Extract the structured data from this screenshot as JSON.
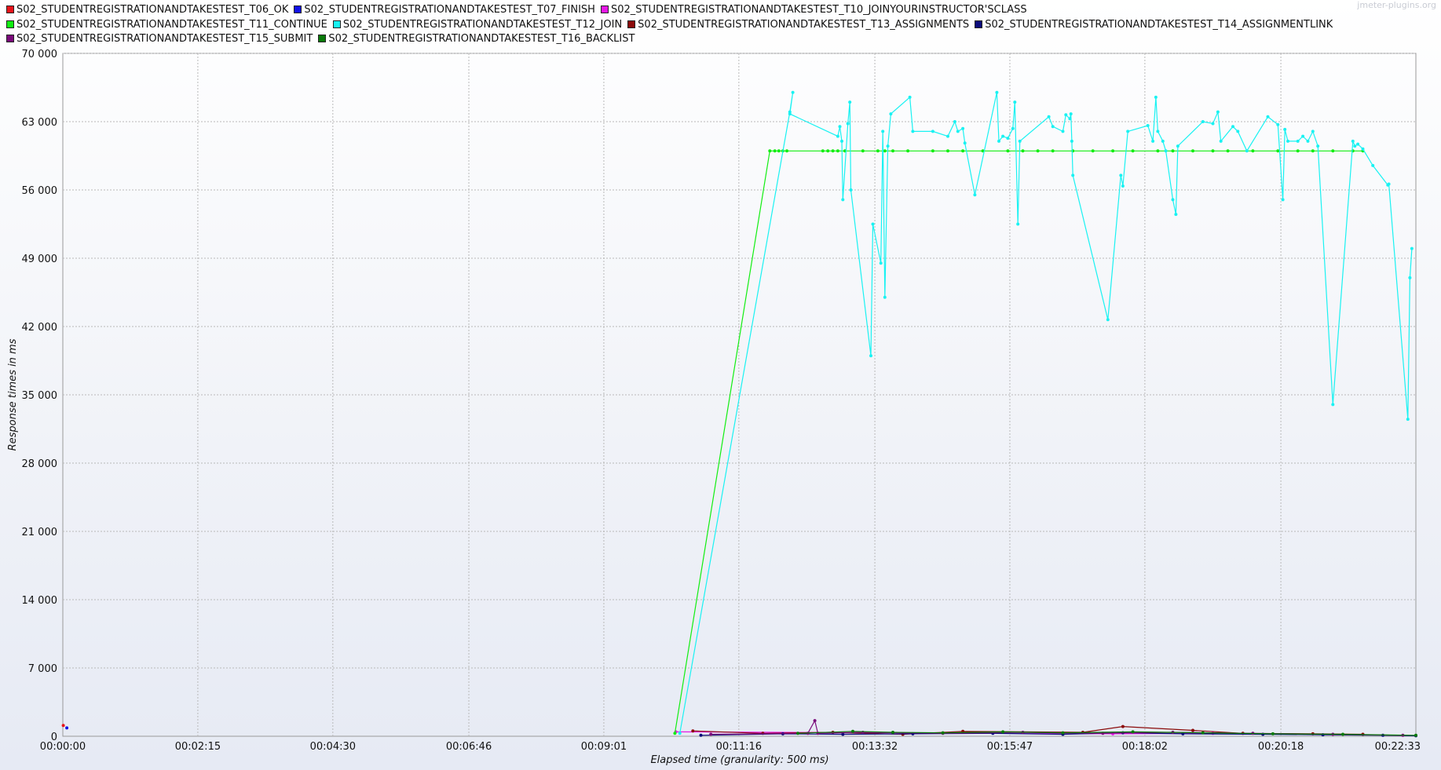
{
  "watermark": "jmeter-plugins.org",
  "chart_data": {
    "type": "line",
    "xlabel": "Elapsed time (granularity: 500 ms)",
    "ylabel": "Response times in ms",
    "x_unit": "seconds elapsed",
    "xlim": [
      0,
      1353
    ],
    "ylim": [
      0,
      70000
    ],
    "y_ticks": [
      0,
      7000,
      14000,
      21000,
      28000,
      35000,
      42000,
      49000,
      56000,
      63000,
      70000
    ],
    "y_tick_labels": [
      "0",
      "7 000",
      "14 000",
      "21 000",
      "28 000",
      "35 000",
      "42 000",
      "49 000",
      "56 000",
      "63 000",
      "70 000"
    ],
    "x_ticks": [
      0,
      135,
      270,
      406,
      541,
      676,
      812,
      947,
      1082,
      1218,
      1353
    ],
    "x_tick_labels": [
      "00:00:00",
      "00:02:15",
      "00:04:30",
      "00:06:46",
      "00:09:01",
      "00:11:16",
      "00:13:32",
      "00:15:47",
      "00:18:02",
      "00:20:18",
      "00:22:33"
    ],
    "grid": true,
    "legend_position": "top",
    "series": [
      {
        "name": "S02_STUDENTREGISTRATIONANDTAKESTEST_T06_OK",
        "color": "#e8141a",
        "points": [
          [
            0.5,
            1100
          ]
        ]
      },
      {
        "name": "S02_STUDENTREGISTRATIONANDTAKESTEST_T07_FINISH",
        "color": "#1212e6",
        "points": [
          [
            4,
            850
          ]
        ]
      },
      {
        "name": "S02_STUDENTREGISTRATIONANDTAKESTEST_T10_JOINYOURINSTRUCTOR'SCLASS",
        "color": "#e619e6",
        "points": [
          [
            613,
            450
          ],
          [
            1050,
            250
          ],
          [
            1150,
            300
          ]
        ]
      },
      {
        "name": "S02_STUDENTREGISTRATIONANDTAKESTEST_T11_CONTINUE",
        "color": "#11ee11",
        "points": [
          [
            612,
            300
          ],
          [
            707,
            60000
          ],
          [
            712,
            60000
          ],
          [
            716,
            60000
          ],
          [
            720,
            60000
          ],
          [
            724,
            60000
          ],
          [
            760,
            60000
          ],
          [
            765,
            60000
          ],
          [
            770,
            60000
          ],
          [
            775,
            60000
          ],
          [
            782,
            60000
          ],
          [
            800,
            60000
          ],
          [
            815,
            60000
          ],
          [
            822,
            60000
          ],
          [
            830,
            60000
          ],
          [
            845,
            60000
          ],
          [
            870,
            60000
          ],
          [
            885,
            60000
          ],
          [
            900,
            60000
          ],
          [
            920,
            60000
          ],
          [
            945,
            60000
          ],
          [
            960,
            60000
          ],
          [
            975,
            60000
          ],
          [
            990,
            60000
          ],
          [
            1010,
            60000
          ],
          [
            1030,
            60000
          ],
          [
            1050,
            60000
          ],
          [
            1070,
            60000
          ],
          [
            1095,
            60000
          ],
          [
            1110,
            60000
          ],
          [
            1130,
            60000
          ],
          [
            1150,
            60000
          ],
          [
            1165,
            60000
          ],
          [
            1190,
            60000
          ],
          [
            1215,
            60000
          ],
          [
            1235,
            60000
          ],
          [
            1250,
            60000
          ],
          [
            1270,
            60000
          ],
          [
            1290,
            60000
          ],
          [
            1300,
            60000
          ]
        ]
      },
      {
        "name": "S02_STUDENTREGISTRATIONANDTAKESTEST_T12_JOIN",
        "color": "#19f2f2",
        "points": [
          [
            617,
            300
          ],
          [
            727,
            64000
          ],
          [
            730,
            66000
          ],
          [
            727,
            63800
          ],
          [
            775,
            61500
          ],
          [
            777,
            62500
          ],
          [
            779,
            61000
          ],
          [
            780,
            55000
          ],
          [
            785,
            62800
          ],
          [
            787,
            65000
          ],
          [
            788,
            56000
          ],
          [
            808,
            39000
          ],
          [
            810,
            52500
          ],
          [
            818,
            48500
          ],
          [
            820,
            62000
          ],
          [
            822,
            45000
          ],
          [
            825,
            60500
          ],
          [
            828,
            63800
          ],
          [
            847,
            65500
          ],
          [
            850,
            62000
          ],
          [
            870,
            62000
          ],
          [
            885,
            61500
          ],
          [
            892,
            63000
          ],
          [
            895,
            62000
          ],
          [
            900,
            62300
          ],
          [
            902,
            60800
          ],
          [
            912,
            55500
          ],
          [
            934,
            66000
          ],
          [
            936,
            61000
          ],
          [
            940,
            61500
          ],
          [
            945,
            61300
          ],
          [
            950,
            62300
          ],
          [
            952,
            65000
          ],
          [
            955,
            52500
          ],
          [
            957,
            61000
          ],
          [
            986,
            63500
          ],
          [
            990,
            62500
          ],
          [
            1000,
            62000
          ],
          [
            1003,
            63700
          ],
          [
            1007,
            63300
          ],
          [
            1008,
            63800
          ],
          [
            1009,
            61000
          ],
          [
            1010,
            57500
          ],
          [
            1045,
            42700
          ],
          [
            1058,
            57500
          ],
          [
            1060,
            56400
          ],
          [
            1065,
            62000
          ],
          [
            1085,
            62600
          ],
          [
            1090,
            61000
          ],
          [
            1093,
            65500
          ],
          [
            1095,
            62000
          ],
          [
            1100,
            61000
          ],
          [
            1103,
            60000
          ],
          [
            1110,
            55000
          ],
          [
            1113,
            53500
          ],
          [
            1115,
            60500
          ],
          [
            1140,
            63000
          ],
          [
            1150,
            62800
          ],
          [
            1155,
            64000
          ],
          [
            1158,
            61000
          ],
          [
            1170,
            62500
          ],
          [
            1175,
            62000
          ],
          [
            1184,
            60000
          ],
          [
            1205,
            63500
          ],
          [
            1215,
            62700
          ],
          [
            1220,
            55000
          ],
          [
            1222,
            62200
          ],
          [
            1225,
            61000
          ],
          [
            1235,
            61000
          ],
          [
            1240,
            61500
          ],
          [
            1245,
            61000
          ],
          [
            1250,
            62000
          ],
          [
            1255,
            60500
          ],
          [
            1270,
            34000
          ],
          [
            1290,
            61000
          ],
          [
            1292,
            60500
          ],
          [
            1295,
            60700
          ],
          [
            1300,
            60200
          ],
          [
            1310,
            58500
          ],
          [
            1325,
            56500
          ],
          [
            1326,
            56600
          ],
          [
            1345,
            32500
          ],
          [
            1347,
            47000
          ],
          [
            1349,
            50000
          ]
        ]
      },
      {
        "name": "S02_STUDENTREGISTRATIONANDTAKESTEST_T13_ASSIGNMENTS",
        "color": "#8b0a0a",
        "points": [
          [
            630,
            550
          ],
          [
            700,
            300
          ],
          [
            770,
            400
          ],
          [
            840,
            200
          ],
          [
            900,
            500
          ],
          [
            1020,
            400
          ],
          [
            1060,
            1000
          ],
          [
            1130,
            600
          ],
          [
            1180,
            300
          ],
          [
            1250,
            250
          ],
          [
            1300,
            200
          ]
        ]
      },
      {
        "name": "S02_STUDENTREGISTRATIONANDTAKESTEST_T14_ASSIGNMENTLINK",
        "color": "#0b0b7a",
        "points": [
          [
            638,
            100
          ],
          [
            720,
            250
          ],
          [
            780,
            200
          ],
          [
            850,
            250
          ],
          [
            930,
            300
          ],
          [
            1000,
            200
          ],
          [
            1060,
            350
          ],
          [
            1120,
            250
          ],
          [
            1200,
            200
          ],
          [
            1260,
            150
          ],
          [
            1320,
            100
          ],
          [
            1353,
            50
          ]
        ]
      },
      {
        "name": "S02_STUDENTREGISTRATIONANDTAKESTEST_T15_SUBMIT",
        "color": "#7a0a7a",
        "points": [
          [
            648,
            200
          ],
          [
            745,
            300
          ],
          [
            752,
            1600
          ],
          [
            755,
            300
          ],
          [
            800,
            400
          ],
          [
            880,
            300
          ],
          [
            960,
            400
          ],
          [
            1040,
            300
          ],
          [
            1110,
            400
          ],
          [
            1190,
            300
          ],
          [
            1270,
            200
          ],
          [
            1340,
            100
          ]
        ]
      },
      {
        "name": "S02_STUDENTREGISTRATIONANDTAKESTEST_T16_BACKLIST",
        "color": "#0a7a0a",
        "points": [
          [
            735,
            300
          ],
          [
            790,
            500
          ],
          [
            830,
            400
          ],
          [
            880,
            350
          ],
          [
            940,
            450
          ],
          [
            1000,
            350
          ],
          [
            1070,
            450
          ],
          [
            1140,
            350
          ],
          [
            1210,
            250
          ],
          [
            1280,
            200
          ],
          [
            1353,
            100
          ]
        ]
      }
    ]
  }
}
